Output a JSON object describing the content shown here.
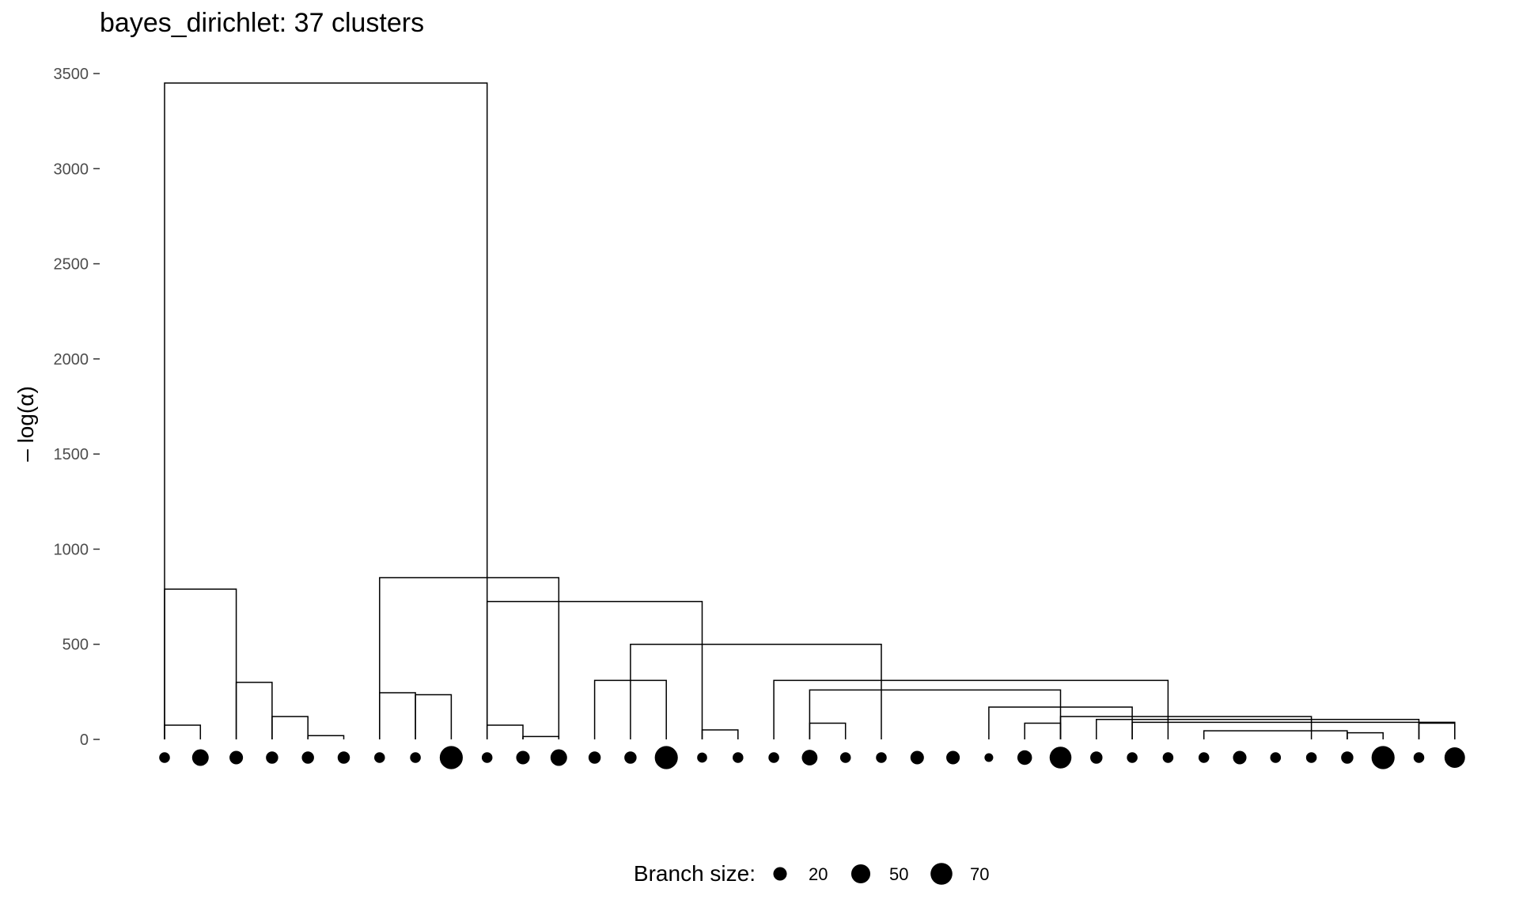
{
  "chart_data": {
    "type": "dendrogram",
    "title": "bayes_dirichlet: 37 clusters",
    "xlabel": "",
    "ylabel": "– log(α)",
    "ylim": [
      0,
      3600
    ],
    "yticks": [
      0,
      500,
      1000,
      1500,
      2000,
      2500,
      3000,
      3500
    ],
    "grid": false,
    "legend_position": "bottom",
    "legend": {
      "title": "Branch size:",
      "entries": [
        {
          "label": "20",
          "size": 20
        },
        {
          "label": "50",
          "size": 50
        },
        {
          "label": "70",
          "size": 70
        }
      ]
    },
    "leaf_sizes": [
      10,
      35,
      20,
      15,
      15,
      15,
      10,
      10,
      80,
      10,
      20,
      35,
      15,
      15,
      80,
      8,
      10,
      10,
      30,
      10,
      10,
      20,
      20,
      5,
      25,
      70,
      15,
      10,
      10,
      10,
      20,
      10,
      10,
      15,
      80,
      10,
      60
    ],
    "merges": [
      {
        "height": 3450,
        "left": 1,
        "right": 10
      },
      {
        "height": 790,
        "left": 1,
        "right": 3
      },
      {
        "height": 75,
        "left": 1,
        "right": 2
      },
      {
        "height": 300,
        "left": 3,
        "right": 4
      },
      {
        "height": 120,
        "left": 4,
        "right": 5
      },
      {
        "height": 20,
        "left": 5,
        "right": 6
      },
      {
        "height": 850,
        "left": 7,
        "right": 12
      },
      {
        "height": 245,
        "left": 7,
        "right": 8
      },
      {
        "height": 235,
        "left": 8,
        "right": 9
      },
      {
        "height": 725,
        "left": 10,
        "right": 16
      },
      {
        "height": 75,
        "left": 10,
        "right": 11
      },
      {
        "height": 15,
        "left": 11,
        "right": 12
      },
      {
        "height": 500,
        "left": 14,
        "right": 21
      },
      {
        "height": 310,
        "left": 13,
        "right": 15
      },
      {
        "height": 50,
        "left": 16,
        "right": 17
      },
      {
        "height": 310,
        "left": 18,
        "right": 29
      },
      {
        "height": 85,
        "left": 19,
        "right": 20
      },
      {
        "height": 260,
        "left": 19,
        "right": 26
      },
      {
        "height": 170,
        "left": 24,
        "right": 28
      },
      {
        "height": 85,
        "left": 25,
        "right": 26
      },
      {
        "height": 120,
        "left": 26,
        "right": 33
      },
      {
        "height": 105,
        "left": 27,
        "right": 36
      },
      {
        "height": 90,
        "left": 28,
        "right": 37
      },
      {
        "height": 45,
        "left": 30,
        "right": 34
      },
      {
        "height": 35,
        "left": 34,
        "right": 35
      },
      {
        "height": 85,
        "left": 36,
        "right": 37
      }
    ]
  }
}
